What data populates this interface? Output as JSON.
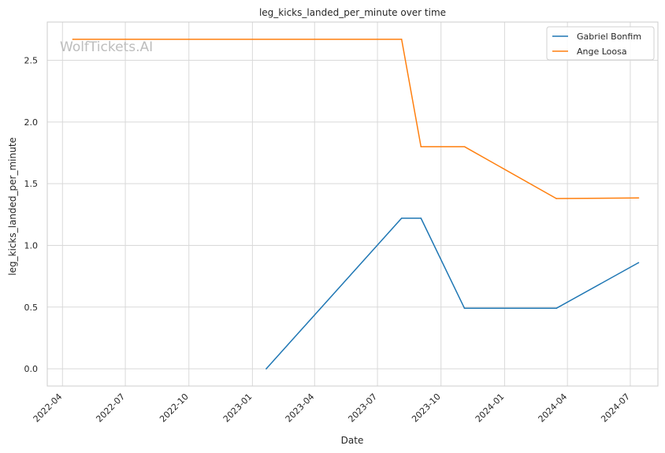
{
  "chart_data": {
    "type": "line",
    "title": "leg_kicks_landed_per_minute over time",
    "xlabel": "Date",
    "ylabel": "leg_kicks_landed_per_minute",
    "x_ticks": [
      "2022-04",
      "2022-07",
      "2022-10",
      "2023-01",
      "2023-04",
      "2023-07",
      "2023-10",
      "2024-01",
      "2024-04",
      "2024-07"
    ],
    "y_ticks": [
      0.0,
      0.5,
      1.0,
      1.5,
      2.0,
      2.5
    ],
    "y_tick_labels": [
      "0.0",
      "0.5",
      "1.0",
      "1.5",
      "2.0",
      "2.5"
    ],
    "xlim": [
      "2022-03-10",
      "2024-08-10"
    ],
    "ylim": [
      -0.14,
      2.81
    ],
    "grid": true,
    "legend_position": "top-right",
    "watermark": "WolfTickets.AI",
    "series": [
      {
        "name": "Gabriel Bonfim",
        "color": "#1f77b4",
        "points": [
          {
            "x": "2023-01-21",
            "y": 0.0
          },
          {
            "x": "2023-08-05",
            "y": 1.22
          },
          {
            "x": "2023-09-02",
            "y": 1.22
          },
          {
            "x": "2023-11-04",
            "y": 0.49
          },
          {
            "x": "2024-03-16",
            "y": 0.49
          },
          {
            "x": "2024-07-13",
            "y": 0.86
          }
        ]
      },
      {
        "name": "Ange Loosa",
        "color": "#ff7f0e",
        "points": [
          {
            "x": "2022-04-16",
            "y": 2.67
          },
          {
            "x": "2023-08-05",
            "y": 2.67
          },
          {
            "x": "2023-09-02",
            "y": 1.8
          },
          {
            "x": "2023-11-04",
            "y": 1.8
          },
          {
            "x": "2024-03-16",
            "y": 1.38
          },
          {
            "x": "2024-07-13",
            "y": 1.385
          }
        ]
      }
    ]
  }
}
